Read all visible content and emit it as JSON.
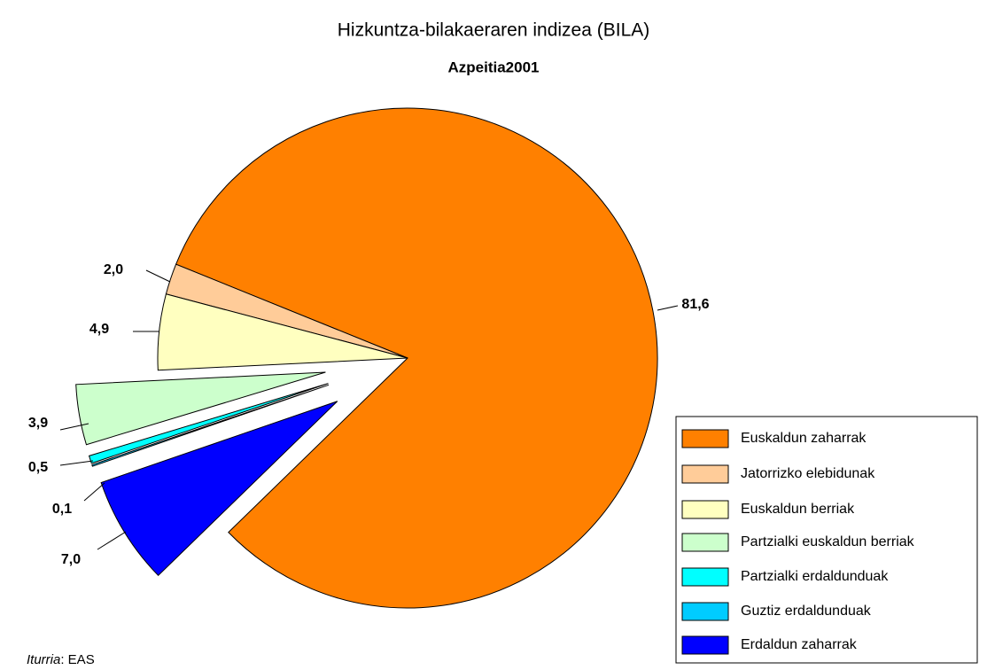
{
  "chart_data": {
    "type": "pie",
    "title": "Hizkuntza-bilakaeraren indizea (BILA)",
    "subtitle": "Azpeitia2001",
    "categories": [
      "Euskaldun zaharrak",
      "Jatorrizko elebidunak",
      "Euskaldun berriak",
      "Partzialki euskaldun berriak",
      "Partzialki erdaldunduak",
      "Guztiz erdaldunduak",
      "Erdaldun zaharrak"
    ],
    "values": [
      81.6,
      2.0,
      4.9,
      3.9,
      0.5,
      0.1,
      7.0
    ],
    "value_labels": [
      "81,6",
      "2,0",
      "4,9",
      "3,9",
      "0,5",
      "0,1",
      "7,0"
    ],
    "colors": [
      "#ff8000",
      "#ffcc99",
      "#ffffc0",
      "#ccffcc",
      "#00ffff",
      "#00ccff",
      "#0000ff"
    ],
    "legend": "bottom-right",
    "source_label": "Iturria",
    "source_text": ": EAS"
  }
}
